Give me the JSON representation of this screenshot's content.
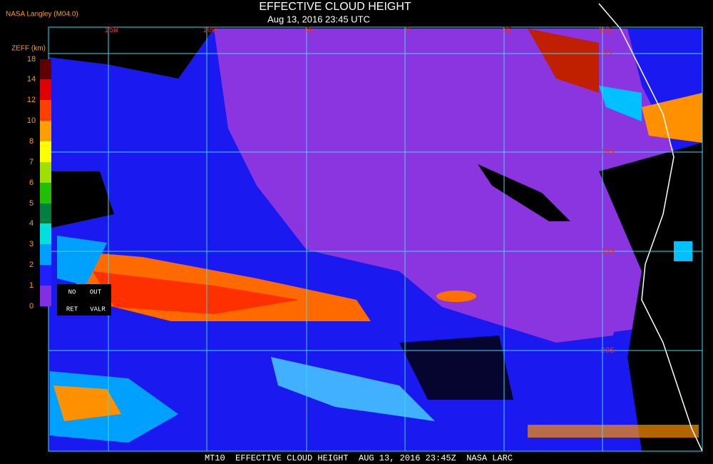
{
  "header": {
    "source": "NASA Langley (M04.0)",
    "title": "EFFECTIVE CLOUD HEIGHT",
    "subtitle": "Aug 13, 2016 23:45 UTC"
  },
  "map": {
    "lon_labels": [
      "15W",
      "10W",
      "5W",
      "0",
      "5E",
      "10E"
    ],
    "lat_labels": [
      "5S",
      "10S",
      "15S",
      "20S"
    ]
  },
  "legend": {
    "title": "ZEFF (km)",
    "ticks": [
      "18",
      "14",
      "12",
      "10",
      "8",
      "7",
      "6",
      "5",
      "4",
      "3",
      "2",
      "1",
      "0"
    ],
    "colors": [
      "#600000",
      "#e00000",
      "#ff4000",
      "#ffa000",
      "#ffff00",
      "#a0e000",
      "#20c000",
      "#008040",
      "#00e0e0",
      "#00a0ff",
      "#2020ff",
      "#8030e0"
    ],
    "no_ret": [
      "NO",
      "RET"
    ],
    "out_valr": [
      "OUT",
      "VALR"
    ]
  },
  "footer": "MT10  EFFECTIVE CLOUD HEIGHT  AUG 13, 2016 23:45Z  NASA LARC"
}
